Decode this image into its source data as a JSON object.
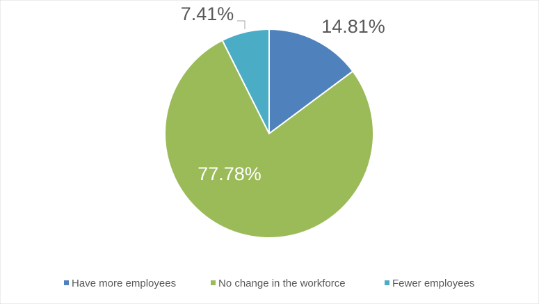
{
  "chart_data": {
    "type": "pie",
    "categories": [
      "Have more employees",
      "No change in the workforce",
      "Fewer employees"
    ],
    "values": [
      14.81,
      77.78,
      7.41
    ],
    "value_labels": [
      "14.81%",
      "77.78%",
      "7.41%"
    ],
    "colors": [
      "#4f81bd",
      "#9bbb59",
      "#4bacc6"
    ],
    "legend": "bottom"
  }
}
